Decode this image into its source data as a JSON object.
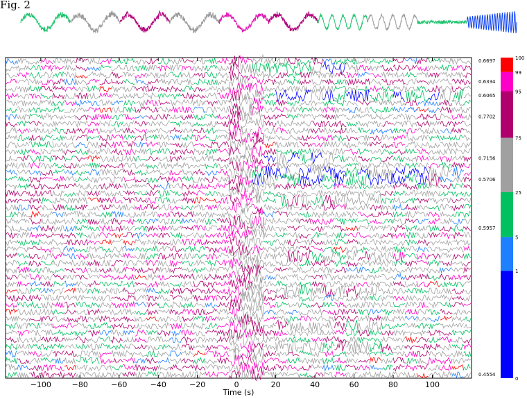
{
  "figure_label": "Fig. 2",
  "chart_data": [
    {
      "type": "line",
      "title": "",
      "description_role": "example waveform coloured by amplitude class",
      "segment_colors": [
        "#21c46f",
        "#9a9a9a",
        "#b0007a",
        "#9a9a9a",
        "#e01ab4",
        "#b0007a",
        "#21c46f",
        "#9a9a9a",
        "#21c46f",
        "#1144ee"
      ]
    },
    {
      "type": "heatmap",
      "title": "",
      "xlabel": "Time (s)",
      "xlim": [
        -118,
        120
      ],
      "x_ticks": [
        -100,
        -80,
        -60,
        -40,
        -20,
        0,
        20,
        40,
        60,
        80,
        100
      ],
      "row_count": 46,
      "row_side_values": [
        {
          "row": 0,
          "label": "0.6697"
        },
        {
          "row": 3,
          "label": "0.6334"
        },
        {
          "row": 5,
          "label": "0.6065"
        },
        {
          "row": 8,
          "label": "0.7702"
        },
        {
          "row": 14,
          "label": "0.7156"
        },
        {
          "row": 17,
          "label": "0.5706"
        },
        {
          "row": 24,
          "label": "0.5957"
        },
        {
          "row": 45,
          "label": "0.4554"
        }
      ],
      "energetic_windows_s": [
        {
          "row": 1,
          "from": 10,
          "to": 60,
          "dominant": "blue"
        },
        {
          "row": 5,
          "from": 15,
          "to": 110,
          "dominant": "blue"
        },
        {
          "row": 14,
          "from": 15,
          "to": 45,
          "dominant": "blue"
        },
        {
          "row": 16,
          "from": 10,
          "to": 110,
          "dominant": "blue"
        },
        {
          "row": 17,
          "from": 10,
          "to": 100,
          "dominant": "blue"
        },
        {
          "row": 20,
          "from": 15,
          "to": 70,
          "dominant": "grey"
        },
        {
          "row": 28,
          "from": 15,
          "to": 80,
          "dominant": "grey"
        },
        {
          "row": 33,
          "from": 20,
          "to": 70,
          "dominant": "grey"
        },
        {
          "row": 38,
          "from": 15,
          "to": 70,
          "dominant": "grey"
        },
        {
          "row": 41,
          "from": 20,
          "to": 75,
          "dominant": "grey"
        }
      ],
      "colorbar": {
        "bands": [
          {
            "from": 0,
            "to": 1,
            "color": "#0000ff"
          },
          {
            "from": 1,
            "to": 5,
            "color": "#1e7fff"
          },
          {
            "from": 5,
            "to": 25,
            "color": "#00c060"
          },
          {
            "from": 25,
            "to": 75,
            "color": "#a0a0a0"
          },
          {
            "from": 75,
            "to": 95,
            "color": "#b0006e"
          },
          {
            "from": 95,
            "to": 99,
            "color": "#ff00c8"
          },
          {
            "from": 99,
            "to": 100,
            "color": "#ff0000"
          }
        ],
        "tick_labels": [
          "0",
          "1",
          "5",
          "25",
          "75",
          "95",
          "99",
          "100"
        ]
      }
    }
  ]
}
